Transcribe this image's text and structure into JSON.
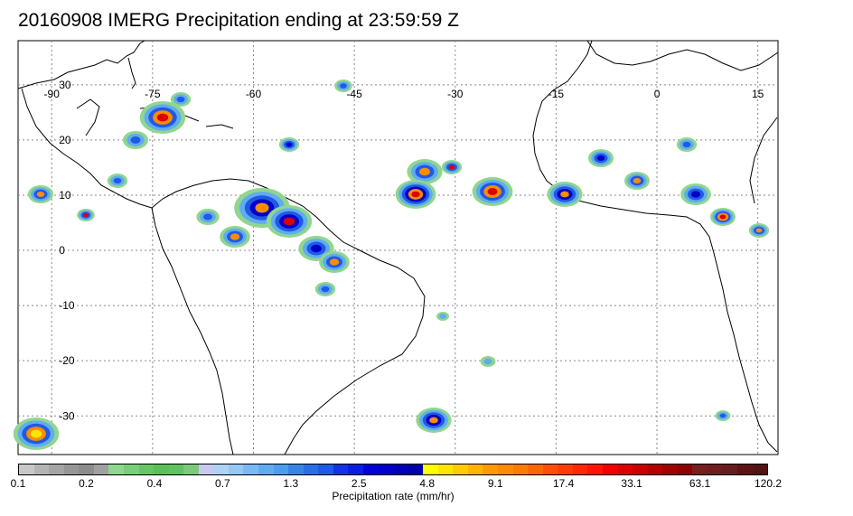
{
  "title": "20160908 IMERG Precipitation ending at 23:59:59 Z",
  "map": {
    "lon_range": [
      -95,
      18
    ],
    "lat_range": [
      -37,
      38
    ],
    "graticule_lon": [
      -90,
      -75,
      -60,
      -45,
      -30,
      -15,
      0,
      15
    ],
    "graticule_lat": [
      30,
      20,
      10,
      0,
      -10,
      -20,
      -30
    ],
    "lon_labels": [
      "-90",
      "-75",
      "-60",
      "-45",
      "-30",
      "-15",
      "0",
      "15"
    ],
    "lat_labels": [
      "30",
      "20",
      "10",
      "0",
      "-10",
      "-20",
      "-30"
    ]
  },
  "colorbar": {
    "title": "Precipitation rate (mm/hr)",
    "tick_labels": [
      "0.1",
      "0.2",
      "0.4",
      "0.7",
      "1.3",
      "2.5",
      "4.8",
      "9.1",
      "17.4",
      "33.1",
      "63.1",
      "120.2"
    ],
    "colors": [
      "#c8c8c8",
      "#b4b4b4",
      "#a5a5a5",
      "#969696",
      "#8c8c8c",
      "#a0a0a0",
      "#8fd68f",
      "#79cf79",
      "#66c666",
      "#5abf5a",
      "#62c162",
      "#7ec87e",
      "#c8c8f0",
      "#aed2f5",
      "#96c8f5",
      "#7ab9f2",
      "#62abef",
      "#4e9ded",
      "#3a82e8",
      "#2b6de6",
      "#1f5ae6",
      "#1432e0",
      "#0a1ee0",
      "#0000d7",
      "#0000c8",
      "#0000b9",
      "#0000aa",
      "#ffff00",
      "#ffe600",
      "#ffcc00",
      "#ffb400",
      "#ff9b00",
      "#ff8c00",
      "#ff7a00",
      "#ff6600",
      "#ff5000",
      "#ff3c00",
      "#ff2800",
      "#ff1400",
      "#f00000",
      "#dc0000",
      "#c80000",
      "#b40000",
      "#a00000",
      "#8c0000",
      "#781e1e",
      "#6e1e1e",
      "#641e1e",
      "#5a1414",
      "#501414"
    ]
  }
}
